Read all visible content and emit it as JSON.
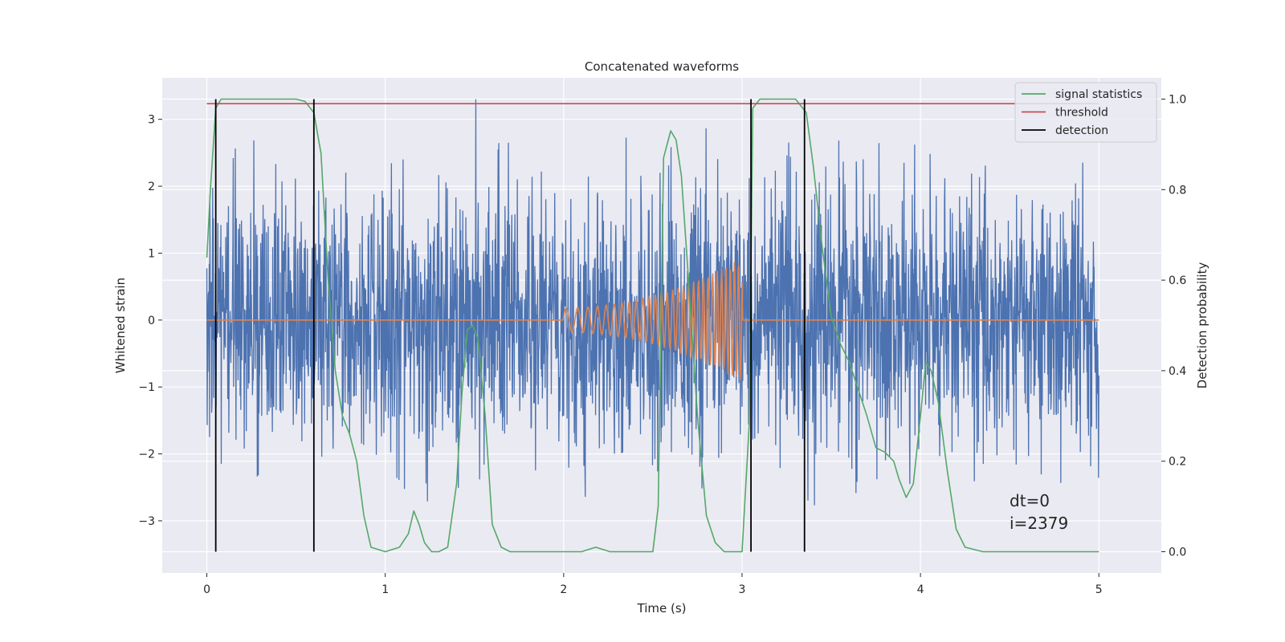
{
  "chart_data": {
    "type": "line",
    "title": "Concatenated waveforms",
    "xlabel": "Time (s)",
    "ylabel": "Whitened strain",
    "y2label": "Detection probability",
    "xlim": [
      -0.25,
      5.35
    ],
    "ylim": [
      -3.78,
      3.62
    ],
    "y2lim": [
      -0.047,
      1.047
    ],
    "xticks": [
      0,
      1,
      2,
      3,
      4,
      5
    ],
    "xtick_labels": [
      "0",
      "1",
      "2",
      "3",
      "4",
      "5"
    ],
    "yticks": [
      -3,
      -2,
      -1,
      0,
      1,
      2,
      3
    ],
    "ytick_labels": [
      "−3",
      "−2",
      "−1",
      "0",
      "1",
      "2",
      "3"
    ],
    "y2ticks": [
      0.0,
      0.2,
      0.4,
      0.6,
      0.8,
      1.0
    ],
    "y2tick_labels": [
      "0.0",
      "0.2",
      "0.4",
      "0.6",
      "0.8",
      "1.0"
    ],
    "grid": true,
    "legend_position": "top-right",
    "annotations": [
      "dt=0",
      "i=2379"
    ],
    "colors": {
      "noise": "#4c72b0",
      "waveform": "#dd8452",
      "signal_statistics": "#55a868",
      "threshold": "#c44e52",
      "detection": "#000000",
      "axes_bg": "#eaeaf2",
      "grid": "#ffffff"
    },
    "series": [
      {
        "name": "signal statistics",
        "axis": "right",
        "x": [
          0.0,
          0.02,
          0.05,
          0.08,
          0.1,
          0.15,
          0.3,
          0.5,
          0.55,
          0.6,
          0.64,
          0.68,
          0.72,
          0.76,
          0.8,
          0.84,
          0.88,
          0.92,
          1.0,
          1.08,
          1.13,
          1.16,
          1.19,
          1.22,
          1.26,
          1.3,
          1.35,
          1.4,
          1.43,
          1.46,
          1.49,
          1.52,
          1.56,
          1.6,
          1.65,
          1.7,
          1.9,
          2.1,
          2.18,
          2.26,
          2.4,
          2.5,
          2.53,
          2.56,
          2.6,
          2.63,
          2.66,
          2.7,
          2.75,
          2.8,
          2.85,
          2.9,
          3.0,
          3.04,
          3.06,
          3.1,
          3.3,
          3.36,
          3.4,
          3.45,
          3.5,
          3.55,
          3.6,
          3.65,
          3.7,
          3.75,
          3.8,
          3.85,
          3.88,
          3.92,
          3.96,
          4.0,
          4.03,
          4.06,
          4.1,
          4.15,
          4.2,
          4.25,
          4.35,
          4.6,
          5.0
        ],
        "values": [
          0.65,
          0.8,
          0.98,
          1.0,
          1.0,
          1.0,
          1.0,
          1.0,
          0.995,
          0.97,
          0.88,
          0.6,
          0.4,
          0.3,
          0.26,
          0.2,
          0.08,
          0.01,
          0.0,
          0.01,
          0.04,
          0.09,
          0.06,
          0.02,
          0.0,
          0.0,
          0.01,
          0.15,
          0.35,
          0.49,
          0.5,
          0.47,
          0.3,
          0.06,
          0.01,
          0.0,
          0.0,
          0.0,
          0.01,
          0.0,
          0.0,
          0.0,
          0.1,
          0.87,
          0.93,
          0.91,
          0.83,
          0.6,
          0.3,
          0.08,
          0.02,
          0.0,
          0.0,
          0.28,
          0.98,
          1.0,
          1.0,
          0.97,
          0.85,
          0.67,
          0.52,
          0.46,
          0.42,
          0.36,
          0.3,
          0.23,
          0.22,
          0.2,
          0.16,
          0.12,
          0.15,
          0.3,
          0.42,
          0.4,
          0.33,
          0.18,
          0.05,
          0.01,
          0.0,
          0.0,
          0.0
        ]
      },
      {
        "name": "threshold",
        "axis": "right",
        "x": [
          0.0,
          5.0
        ],
        "values": [
          0.99,
          0.99
        ]
      },
      {
        "name": "detection",
        "axis": "right",
        "x": [
          0.05,
          0.6,
          3.05,
          3.35
        ],
        "values": [
          1.0,
          1.0,
          1.0,
          1.0
        ]
      }
    ]
  }
}
